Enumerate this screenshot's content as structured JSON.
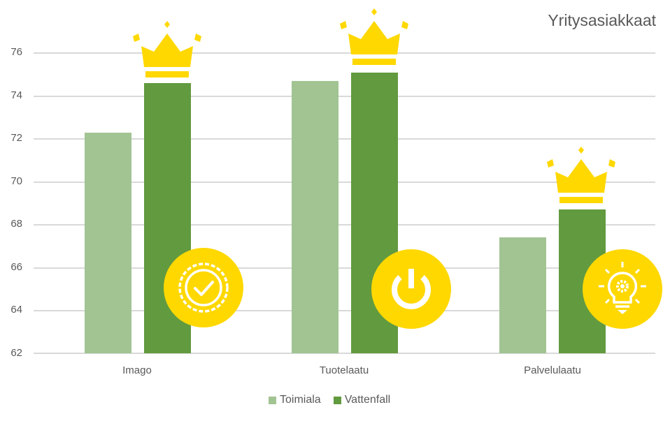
{
  "chart_data": {
    "type": "bar",
    "title": "Yritysasiakkaat",
    "categories": [
      "Imago",
      "Tuotelaatu",
      "Palvelulaatu"
    ],
    "series": [
      {
        "name": "Toimiala",
        "color": "#a2c493",
        "values": [
          72.3,
          74.7,
          67.4
        ]
      },
      {
        "name": "Vattenfall",
        "color": "#629a3f",
        "values": [
          74.6,
          75.1,
          68.7
        ]
      }
    ],
    "xlabel": "",
    "ylabel": "",
    "ylim": [
      62,
      76
    ],
    "yticks": [
      62,
      64,
      66,
      68,
      70,
      72,
      74,
      76
    ],
    "grid": true,
    "legend_position": "bottom",
    "annotations": [
      {
        "category": "Imago",
        "type": "crown-icon",
        "over_series": "Vattenfall"
      },
      {
        "category": "Tuotelaatu",
        "type": "crown-icon",
        "over_series": "Vattenfall"
      },
      {
        "category": "Palvelulaatu",
        "type": "crown-icon",
        "over_series": "Vattenfall"
      },
      {
        "category": "Imago",
        "type": "badge-check-icon"
      },
      {
        "category": "Tuotelaatu",
        "type": "power-icon"
      },
      {
        "category": "Palvelulaatu",
        "type": "lightbulb-gear-icon"
      }
    ]
  },
  "title": "Yritysasiakkaat",
  "y_axis": {
    "ticks": [
      "76",
      "74",
      "72",
      "70",
      "68",
      "66",
      "64",
      "62"
    ]
  },
  "x_axis": {
    "labels": [
      "Imago",
      "Tuotelaatu",
      "Palvelulaatu"
    ]
  },
  "legend": {
    "items": [
      {
        "label": "Toimiala",
        "color": "#a2c493"
      },
      {
        "label": "Vattenfall",
        "color": "#629a3f"
      }
    ]
  },
  "colors": {
    "accent_yellow": "#ffd800",
    "grid": "#d9d9d9",
    "text": "#595959"
  }
}
